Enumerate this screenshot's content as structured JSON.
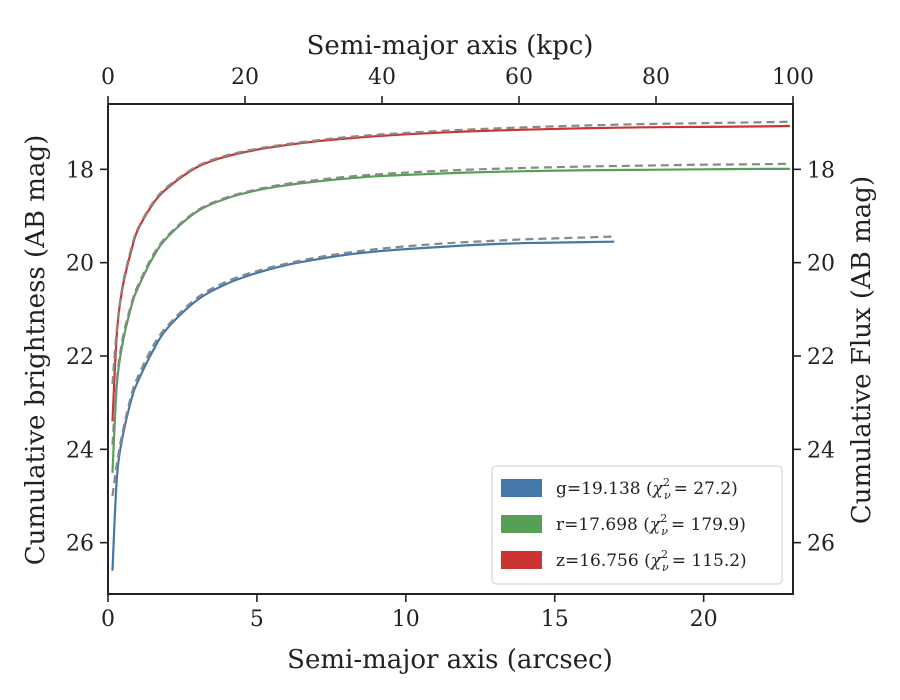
{
  "chart_data": {
    "type": "line",
    "xlabel": "Semi-major axis (arcsec)",
    "x2label": "Semi-major axis (kpc)",
    "ylabel": "Cumulative brightness (AB mag)",
    "y2label": "Cumulative Flux (AB mag)",
    "xlim": [
      0,
      23
    ],
    "x2lim": [
      0,
      100
    ],
    "ylim": [
      27.1,
      16.6
    ],
    "y_inverted": true,
    "xticks": [
      "0",
      "5",
      "10",
      "15",
      "20"
    ],
    "xtick_values": [
      0,
      5,
      10,
      15,
      20
    ],
    "x2ticks": [
      "0",
      "20",
      "40",
      "60",
      "80",
      "100"
    ],
    "x2tick_values": [
      0,
      20,
      40,
      60,
      80,
      100
    ],
    "yticks": [
      "18",
      "20",
      "22",
      "24",
      "26"
    ],
    "ytick_values": [
      18,
      20,
      22,
      24,
      26
    ],
    "grid": false,
    "legend_position": "bottom-right",
    "series": [
      {
        "band": "g",
        "name_main": "g=19.138",
        "name_chi": "χ",
        "name_sub": "ν",
        "name_sup": "2",
        "name_val": "= 27.2)",
        "color": "#4477aa",
        "x": [
          0.15,
          0.3,
          0.5,
          0.8,
          1.0,
          1.5,
          2.0,
          3.0,
          4.0,
          5.0,
          6.0,
          7.0,
          8.0,
          9.0,
          10.0,
          11.0,
          12.0,
          13.0,
          14.0,
          15.0,
          16.0,
          17.0
        ],
        "y": [
          26.6,
          24.6,
          23.7,
          22.9,
          22.55,
          21.9,
          21.4,
          20.8,
          20.45,
          20.22,
          20.05,
          19.93,
          19.83,
          19.76,
          19.71,
          19.67,
          19.63,
          19.6,
          19.58,
          19.57,
          19.56,
          19.55
        ]
      },
      {
        "band": "r",
        "name_main": "r=17.698",
        "name_chi": "χ",
        "name_sub": "ν",
        "name_sup": "2",
        "name_val": "= 179.9)",
        "color": "#55a055",
        "x": [
          0.15,
          0.3,
          0.5,
          0.8,
          1.0,
          1.5,
          2.0,
          3.0,
          4.0,
          5.0,
          6.0,
          7.0,
          8.0,
          9.0,
          10.0,
          12.0,
          14.0,
          16.0,
          18.0,
          20.0,
          22.0,
          22.9
        ],
        "y": [
          24.5,
          22.6,
          21.7,
          20.9,
          20.55,
          19.9,
          19.45,
          18.9,
          18.62,
          18.45,
          18.34,
          18.26,
          18.2,
          18.15,
          18.12,
          18.07,
          18.04,
          18.02,
          18.01,
          18.0,
          17.99,
          17.99
        ]
      },
      {
        "band": "z",
        "name_main": "z=16.756",
        "name_chi": "χ",
        "name_sub": "ν",
        "name_sup": "2",
        "name_val": "= 115.2)",
        "color": "#cc3333",
        "x": [
          0.15,
          0.3,
          0.5,
          0.8,
          1.0,
          1.5,
          2.0,
          3.0,
          4.0,
          5.0,
          6.0,
          7.0,
          8.0,
          9.0,
          10.0,
          12.0,
          14.0,
          16.0,
          18.0,
          20.0,
          22.0,
          22.9
        ],
        "y": [
          23.4,
          21.5,
          20.5,
          19.7,
          19.3,
          18.75,
          18.4,
          17.95,
          17.72,
          17.58,
          17.48,
          17.4,
          17.34,
          17.29,
          17.25,
          17.19,
          17.15,
          17.12,
          17.1,
          17.09,
          17.08,
          17.07
        ]
      }
    ],
    "model_curves": [
      {
        "band": "g",
        "color": "#888888",
        "x": [
          0.15,
          0.3,
          0.5,
          0.8,
          1.0,
          1.5,
          2.0,
          3.0,
          4.0,
          5.0,
          6.0,
          7.0,
          8.0,
          9.0,
          10.0,
          11.0,
          12.0,
          13.0,
          14.0,
          15.0,
          16.0,
          17.0
        ],
        "y": [
          25.0,
          24.3,
          23.6,
          22.8,
          22.45,
          21.8,
          21.35,
          20.75,
          20.4,
          20.18,
          20.02,
          19.89,
          19.79,
          19.71,
          19.65,
          19.6,
          19.56,
          19.53,
          19.5,
          19.48,
          19.46,
          19.44
        ]
      },
      {
        "band": "r",
        "color": "#888888",
        "x": [
          0.15,
          0.3,
          0.5,
          0.8,
          1.0,
          1.5,
          2.0,
          3.0,
          4.0,
          5.0,
          6.0,
          7.0,
          8.0,
          9.0,
          10.0,
          12.0,
          14.0,
          16.0,
          18.0,
          20.0,
          22.0,
          22.9
        ],
        "y": [
          23.9,
          22.5,
          21.6,
          20.85,
          20.5,
          19.85,
          19.42,
          18.88,
          18.6,
          18.43,
          18.31,
          18.23,
          18.16,
          18.11,
          18.07,
          18.01,
          17.97,
          17.94,
          17.92,
          17.9,
          17.89,
          17.88
        ]
      },
      {
        "band": "z",
        "color": "#888888",
        "x": [
          0.15,
          0.3,
          0.5,
          0.8,
          1.0,
          1.5,
          2.0,
          3.0,
          4.0,
          5.0,
          6.0,
          7.0,
          8.0,
          9.0,
          10.0,
          12.0,
          14.0,
          16.0,
          18.0,
          20.0,
          22.0,
          22.9
        ],
        "y": [
          22.6,
          21.4,
          20.45,
          19.65,
          19.27,
          18.72,
          18.37,
          17.93,
          17.7,
          17.56,
          17.46,
          17.38,
          17.31,
          17.26,
          17.22,
          17.15,
          17.1,
          17.06,
          17.03,
          17.01,
          16.99,
          16.98
        ]
      }
    ]
  }
}
